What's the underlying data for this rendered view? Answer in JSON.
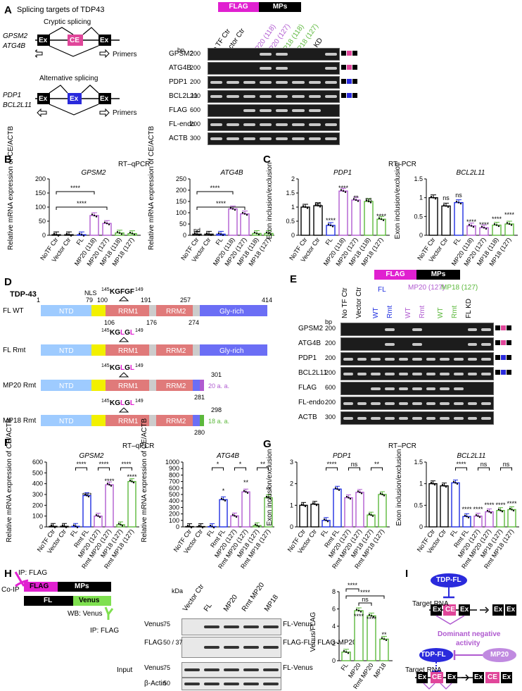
{
  "panelA": {
    "label": "A",
    "title": "Splicing targets of TDP43",
    "cryptic_title": "Cryptic splicing",
    "cryptic_genes": [
      "GPSM2",
      "ATG4B"
    ],
    "alt_title": "Alternative splicing",
    "alt_genes": [
      "PDP1",
      "BCL2L11"
    ],
    "ex": "Ex",
    "ce": "CE",
    "primers": "Primers",
    "flag": "FLAG",
    "mps": "MPs",
    "bp": "bp",
    "lanes": [
      "No TF Ctr",
      "Vector Ctr",
      "FL",
      "MP20 (118)",
      "MP20 (127)",
      "MP18 (118)",
      "MP18 (127)",
      "FL KD"
    ],
    "rows": [
      "GPSM2",
      "ATG4B",
      "PDP1",
      "BCL2L11",
      "FLAG",
      "FL-endo",
      "ACTB"
    ],
    "sizes": [
      "200",
      "200",
      "200",
      "200",
      "600",
      "200",
      "300"
    ]
  },
  "panelB": {
    "label": "B",
    "method": "RT–qPCR",
    "ylabel": "Relative mRNA expression of CE/ACTB",
    "nd": "nd",
    "stars": "****"
  },
  "panelC": {
    "label": "C",
    "method": "RT–PCR",
    "ylabel": "Exon inclusion/exclusion",
    "ns": "ns",
    "stars4": "****",
    "stars2": "**"
  },
  "panelD": {
    "label": "D",
    "title": "TDP-43",
    "nls": "NLS",
    "wt_motif": "KGFGF",
    "mt_motif": "KGLGL",
    "motif_start": "145",
    "motif_end": "149",
    "constructs": [
      "FL WT",
      "FL Rmt",
      "MP20 Rmt",
      "MP18 Rmt"
    ],
    "domains": [
      "NTD",
      "RRM1",
      "RRM2",
      "Gly-rich"
    ],
    "positions": [
      "1",
      "79",
      "100",
      "191",
      "257",
      "414",
      "106",
      "176",
      "274",
      "301",
      "281",
      "298",
      "280"
    ],
    "mp20_tail": "20 a. a.",
    "mp18_tail": "18 a. a."
  },
  "panelE": {
    "label": "E",
    "flag": "FLAG",
    "mps": "MPs",
    "bp": "bp",
    "lanes_top": [
      "No TF Ctr",
      "Vector Ctr"
    ],
    "groups": [
      "FL",
      "MP20 (127)",
      "MP18 (127)"
    ],
    "sub": [
      "WT",
      "Rmt"
    ],
    "fl_kd": "FL KD",
    "rows": [
      "GPSM2",
      "ATG4B",
      "PDP1",
      "BCL2L11",
      "FLAG",
      "FL-endo",
      "ACTB"
    ],
    "sizes": [
      "200",
      "200",
      "200",
      "200",
      "600",
      "200",
      "300"
    ]
  },
  "panelF": {
    "label": "F",
    "method": "RT–qPCR",
    "ylabel": "Relative mRNA expression of CE/ACTB"
  },
  "panelG": {
    "label": "G",
    "method": "RT–PCR",
    "ylabel": "Exon inclusion/exclusion"
  },
  "panelH": {
    "label": "H",
    "ip_flag": "IP: FLAG",
    "coip": "Co-IP",
    "flag": "FLAG",
    "mps": "MPs",
    "fl": "FL",
    "venus": "Venus",
    "wb": "WB: Venus",
    "kda": "kDa",
    "lanes": [
      "Vector Ctr",
      "FL",
      "MP20",
      "Rmt MP20",
      "MP18"
    ],
    "ip_label": "IP: FLAG",
    "input_label": "Input",
    "blot_rows": [
      "Venus",
      "FLAG",
      "Venus",
      "β-Actin"
    ],
    "mw": [
      "75",
      "50",
      "37",
      "75",
      "50"
    ],
    "bands": [
      "FL-Venus",
      "FLAG-FL",
      "FLAG-MP20",
      "FL-Venus"
    ],
    "ylabel": "Venus/FLAG"
  },
  "panelI": {
    "label": "I",
    "tdp_fl": "TDP-FL",
    "target_rna": "Target RNA",
    "ex": "Ex",
    "ce": "CE",
    "dn1": "Dominant negative",
    "dn2": "activity",
    "mp20": "MP20"
  },
  "colors": {
    "black": "#000000",
    "blue": "#1f2ee0",
    "purple": "#b05ad0",
    "green": "#5cb83c",
    "flag_magenta": "#e020d0",
    "ce_pink": "#e0469a",
    "ex_blue": "#2a2adc",
    "ntd": "#9ecbff",
    "nls": "#f2f000",
    "rrm": "#e07a7a",
    "gly": "#6b6ef5",
    "venus": "#7fe050"
  },
  "chart_data": [
    {
      "type": "bar",
      "panel": "B-GPSM2",
      "title": "GPSM2",
      "categories": [
        "NoTF Ctr",
        "Vector Ctr",
        "FL",
        "MP20 (118)",
        "MP20 (127)",
        "MP18 (118)",
        "MP18 (127)"
      ],
      "values": [
        2,
        2,
        2,
        70,
        42,
        8,
        6
      ],
      "ylim": [
        0,
        200
      ],
      "yticks": [
        0,
        50,
        100,
        150,
        200
      ]
    },
    {
      "type": "bar",
      "panel": "B-ATG4B",
      "title": "ATG4B",
      "categories": [
        "NoTF Ctr",
        "Vector Ctr",
        "FL",
        "MP20 (118)",
        "MP20 (127)",
        "MP18 (118)",
        "MP18 (127)"
      ],
      "values": [
        5,
        5,
        5,
        117,
        95,
        8,
        8
      ],
      "ylim": [
        0,
        250
      ],
      "yticks": [
        0,
        50,
        100,
        150,
        200,
        250
      ]
    },
    {
      "type": "bar",
      "panel": "C-PDP1",
      "title": "PDP1",
      "categories": [
        "NoTF Ctr",
        "Vector Ctr",
        "FL",
        "MP20 (118)",
        "MP20 (127)",
        "MP18 (118)",
        "MP18 (127)"
      ],
      "values": [
        1.0,
        1.05,
        0.35,
        1.57,
        1.25,
        1.2,
        0.57
      ],
      "ylim": [
        0,
        2.0
      ],
      "yticks": [
        0,
        0.5,
        1.0,
        1.5,
        2.0
      ]
    },
    {
      "type": "bar",
      "panel": "C-BCL2L11",
      "title": "BCL2L11",
      "categories": [
        "NoTF Ctr",
        "Vector Ctr",
        "FL",
        "MP20 (118)",
        "MP20 (127)",
        "MP18 (118)",
        "MP18 (127)"
      ],
      "values": [
        1.0,
        0.78,
        0.87,
        0.25,
        0.2,
        0.27,
        0.3
      ],
      "ylim": [
        0,
        1.5
      ],
      "yticks": [
        0,
        0.5,
        1.0,
        1.5
      ]
    },
    {
      "type": "bar",
      "panel": "F-GPSM2",
      "title": "GPSM2",
      "categories": [
        "NoTF Ctr",
        "Vector Ctr",
        "FL",
        "Rmt FL",
        "MP20 (127)",
        "Rmt MP20 (127)",
        "MP18 (127)",
        "Rmt MP18 (127)"
      ],
      "values": [
        5,
        5,
        5,
        290,
        100,
        390,
        20,
        420
      ],
      "ylim": [
        0,
        600
      ],
      "yticks": [
        0,
        100,
        200,
        300,
        400,
        500,
        600
      ]
    },
    {
      "type": "bar",
      "panel": "F-ATG4B",
      "title": "ATG4B",
      "categories": [
        "NoTF Ctr",
        "Vector Ctr",
        "FL",
        "Rmt FL",
        "MP20 (127)",
        "Rmt MP20 (127)",
        "MP18 (127)",
        "Rmt MP18 (127)"
      ],
      "values": [
        5,
        5,
        5,
        420,
        170,
        540,
        20,
        450
      ],
      "ylim": [
        0,
        1000
      ],
      "yticks": [
        0,
        100,
        200,
        300,
        400,
        500,
        600,
        700,
        800,
        900,
        1000
      ]
    },
    {
      "type": "bar",
      "panel": "G-PDP1",
      "title": "PDP1",
      "categories": [
        "NoTF Ctr",
        "Vector Ctr",
        "FL",
        "Rmt FL",
        "MP20 (127)",
        "Rmt MP20 (127)",
        "MP18 (127)",
        "Rmt MP18 (127)"
      ],
      "values": [
        1.0,
        1.05,
        0.3,
        1.75,
        1.35,
        1.6,
        0.55,
        1.5
      ],
      "ylim": [
        0,
        3
      ],
      "yticks": [
        0,
        1,
        2,
        3
      ]
    },
    {
      "type": "bar",
      "panel": "G-BCL2L11",
      "title": "BCL2L11",
      "categories": [
        "NoTF Ctr",
        "Vector Ctr",
        "FL",
        "Rmt FL",
        "MP20 (127)",
        "Rmt MP20 (127)",
        "MP18 (127)",
        "Rmt MP18 (127)"
      ],
      "values": [
        1.0,
        0.95,
        1.02,
        0.24,
        0.25,
        0.35,
        0.38,
        0.4
      ],
      "ylim": [
        0,
        1.5
      ],
      "yticks": [
        0,
        0.5,
        1.0,
        1.5
      ]
    },
    {
      "type": "bar",
      "panel": "H-quant",
      "title": "",
      "categories": [
        "FL",
        "MP20",
        "Rmt MP20",
        "MP18"
      ],
      "values": [
        1.0,
        5.8,
        5.2,
        2.5
      ],
      "ylim": [
        0,
        8
      ],
      "yticks": [
        0,
        2,
        4,
        6,
        8
      ]
    }
  ]
}
